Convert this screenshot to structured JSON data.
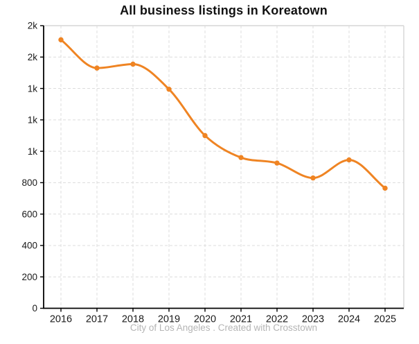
{
  "title": "All business listings in Koreatown",
  "footer": "City of Los Angeles . Created with Crosstown",
  "colors": {
    "line": "#ef8423",
    "marker": "#ef8423",
    "grid": "#dcdcdc",
    "axis": "#000000",
    "plot_border": "#d6d6d6",
    "tick_label": "#1a1a1a",
    "title_text": "#111111",
    "footer_text": "#b5b5b5",
    "background": "#ffffff"
  },
  "chart_data": {
    "type": "line",
    "title": "All business listings in Koreatown",
    "series_name": "All business listings",
    "x": [
      "2016",
      "2017",
      "2018",
      "2019",
      "2020",
      "2021",
      "2022",
      "2023",
      "2024",
      "2025"
    ],
    "values": [
      1710,
      1530,
      1555,
      1395,
      1100,
      960,
      925,
      830,
      945,
      765
    ],
    "xlabel": "",
    "ylabel": "",
    "ylim": [
      0,
      1800
    ],
    "yticks": [
      {
        "value": 0,
        "label": "0"
      },
      {
        "value": 200,
        "label": "200"
      },
      {
        "value": 400,
        "label": "400"
      },
      {
        "value": 600,
        "label": "600"
      },
      {
        "value": 800,
        "label": "800"
      },
      {
        "value": 1000,
        "label": "1k"
      },
      {
        "value": 1200,
        "label": "1k"
      },
      {
        "value": 1400,
        "label": "1k"
      },
      {
        "value": 1600,
        "label": "2k"
      },
      {
        "value": 1800,
        "label": "2k"
      }
    ],
    "grid": true,
    "grid_style": "dashed",
    "legend": false,
    "curve": "monotone",
    "markers": true,
    "source_note": "City of Los Angeles . Created with Crosstown"
  }
}
